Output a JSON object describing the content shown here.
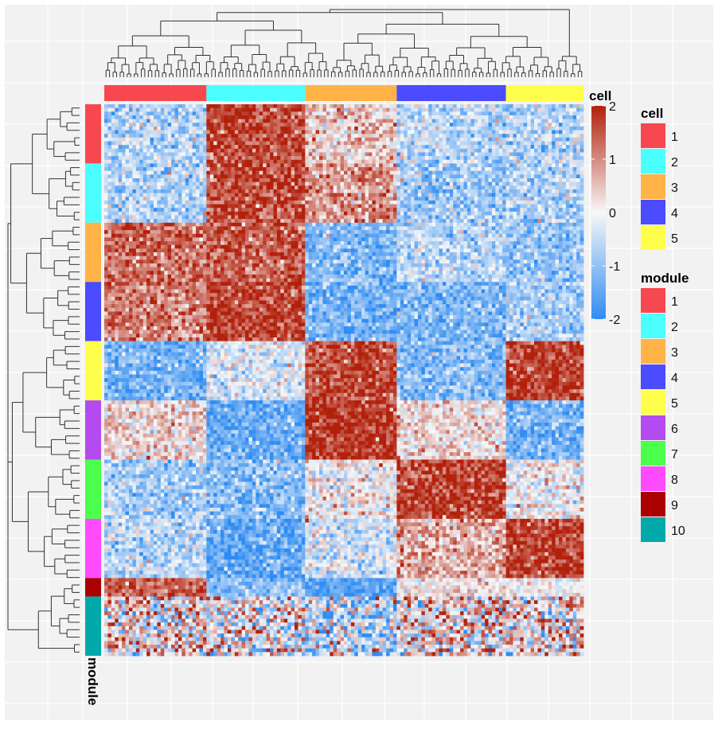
{
  "chart_data": {
    "type": "heatmap",
    "x_annotation_title": "cell",
    "y_annotation_title": "module",
    "column_groups": [
      {
        "label": "1",
        "color": "#F8484F",
        "n_cols": 29
      },
      {
        "label": "2",
        "color": "#4CFFFF",
        "n_cols": 28
      },
      {
        "label": "3",
        "color": "#FFB347",
        "n_cols": 26
      },
      {
        "label": "4",
        "color": "#4B4BFF",
        "n_cols": 31
      },
      {
        "label": "5",
        "color": "#FFFF4B",
        "n_cols": 22
      }
    ],
    "row_groups": [
      {
        "label": "1",
        "color": "#F8484F",
        "n_rows": 16
      },
      {
        "label": "2",
        "color": "#4CFFFF",
        "n_rows": 16
      },
      {
        "label": "3",
        "color": "#FFB347",
        "n_rows": 16
      },
      {
        "label": "4",
        "color": "#4B4BFF",
        "n_rows": 16
      },
      {
        "label": "5",
        "color": "#FFFF4B",
        "n_rows": 16
      },
      {
        "label": "6",
        "color": "#B44BF0",
        "n_rows": 16
      },
      {
        "label": "7",
        "color": "#4BFF4B",
        "n_rows": 16
      },
      {
        "label": "8",
        "color": "#FF4BFF",
        "n_rows": 16
      },
      {
        "label": "9",
        "color": "#AA0000",
        "n_rows": 5
      },
      {
        "label": "10",
        "color": "#00AAAA",
        "n_rows": 16
      }
    ],
    "block_means": [
      [
        -0.7,
        1.6,
        0.4,
        -0.6,
        -0.6
      ],
      [
        -0.7,
        1.6,
        0.9,
        -0.9,
        -0.7
      ],
      [
        1.3,
        1.4,
        -1.2,
        -0.6,
        -1.0
      ],
      [
        1.1,
        1.7,
        -1.3,
        -1.2,
        -0.8
      ],
      [
        -1.3,
        -0.3,
        1.6,
        -1.1,
        1.7
      ],
      [
        0.3,
        -1.4,
        1.8,
        0.3,
        -1.3
      ],
      [
        -0.8,
        -1.1,
        0.0,
        1.7,
        0.0
      ],
      [
        -0.6,
        -1.5,
        -0.4,
        0.7,
        1.7
      ],
      [
        1.4,
        -1.0,
        -1.6,
        0.2,
        0.0
      ],
      [
        0.2,
        0.0,
        -0.6,
        0.3,
        0.2
      ]
    ],
    "block_noise": [
      0.55,
      0.55,
      0.5,
      0.5,
      0.5,
      0.5,
      0.55,
      0.55,
      0.4,
      1.1
    ],
    "color_scale": {
      "stops": [
        {
          "value": -2,
          "color": "#2F8CF2"
        },
        {
          "value": 0,
          "color": "#F7F7F7"
        },
        {
          "value": 2,
          "color": "#B2200B"
        }
      ],
      "ticks": [
        "2",
        "1",
        "0",
        "-1",
        "-2"
      ],
      "tick_values": [
        2,
        1,
        0,
        -1,
        -2
      ],
      "title": "cell"
    },
    "legends": [
      {
        "title": "cell",
        "items": [
          "1",
          "2",
          "3",
          "4",
          "5"
        ],
        "colors": [
          "#F8484F",
          "#4CFFFF",
          "#FFB347",
          "#4B4BFF",
          "#FFFF4B"
        ]
      },
      {
        "title": "module",
        "items": [
          "1",
          "2",
          "3",
          "4",
          "5",
          "6",
          "7",
          "8",
          "9",
          "10"
        ],
        "colors": [
          "#F8484F",
          "#4CFFFF",
          "#FFB347",
          "#4B4BFF",
          "#FFFF4B",
          "#B44BF0",
          "#4BFF4B",
          "#FF4BFF",
          "#AA0000",
          "#00AAAA"
        ]
      }
    ],
    "grid": true,
    "legend_position": "right"
  }
}
